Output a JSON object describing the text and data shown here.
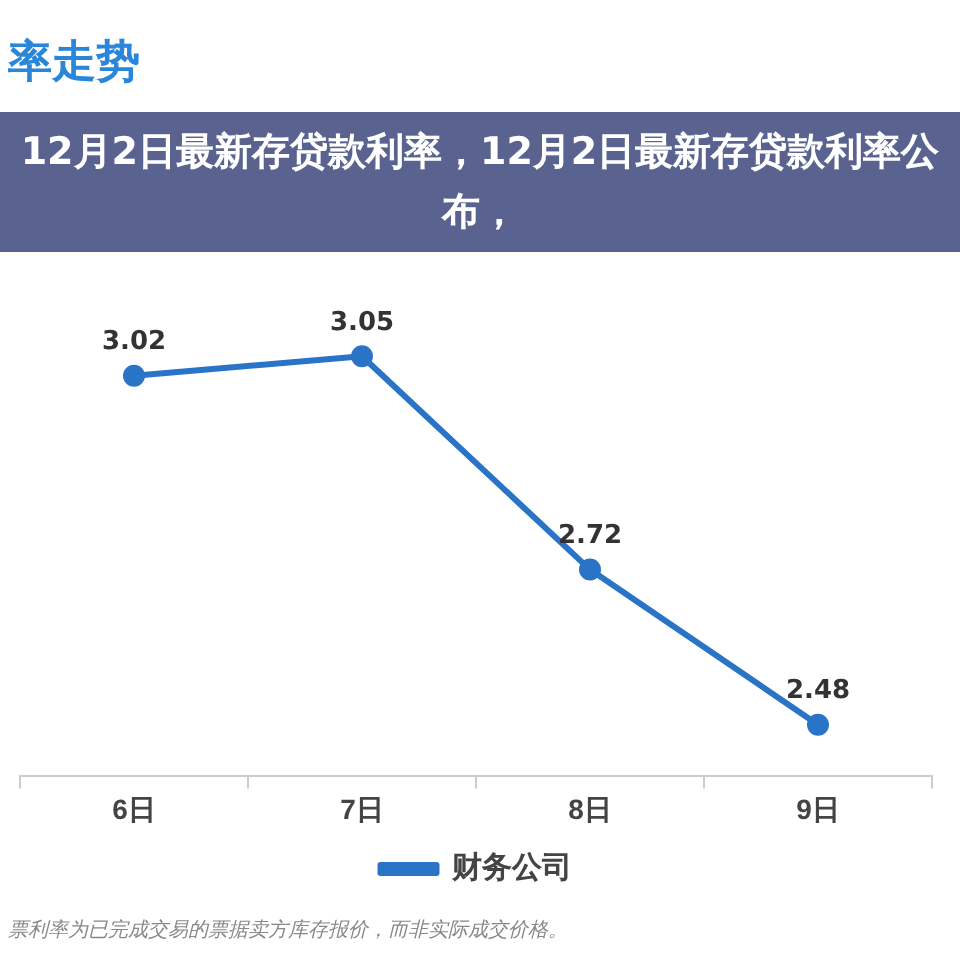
{
  "chart_data": {
    "type": "line",
    "title": "率走势",
    "categories": [
      "6日",
      "7日",
      "8日",
      "9日"
    ],
    "series": [
      {
        "name": "财务公司",
        "color": "#2a74c8",
        "values": [
          3.02,
          3.05,
          2.72,
          2.48
        ]
      }
    ],
    "data_labels": true,
    "grid": false,
    "legend": "bottom",
    "marker": "circle",
    "line_style": "solid",
    "tick_labels": "x",
    "annotations": [
      "12月2日最新存贷款利率，12月2日最新存贷款利率公布，",
      "票利率为已完成交易的票据卖方库存报价，而非实际成交价格。"
    ]
  }
}
